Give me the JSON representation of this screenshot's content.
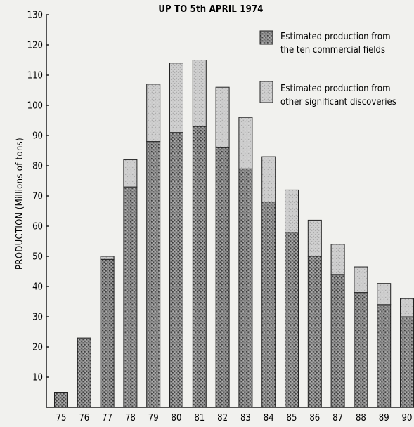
{
  "chart_data": {
    "type": "bar",
    "stacked": true,
    "title": "UP TO 5th APRIL 1974",
    "xlabel": "",
    "ylabel": "PRODUCTION   (Millions of tons)",
    "categories": [
      "75",
      "76",
      "77",
      "78",
      "79",
      "80",
      "81",
      "82",
      "83",
      "84",
      "85",
      "86",
      "87",
      "88",
      "89",
      "90"
    ],
    "yticks": [
      10,
      20,
      30,
      40,
      50,
      60,
      70,
      80,
      90,
      100,
      110,
      120,
      130
    ],
    "ylim": [
      0,
      130
    ],
    "grid": false,
    "legend_position": "top-right",
    "series": [
      {
        "name": "Estimated production from the ten commercial fields",
        "legend_lines": [
          "Estimated production from",
          "the ten commercial fields"
        ],
        "values": [
          5,
          23,
          49,
          73,
          88,
          91,
          93,
          86,
          79,
          68,
          58,
          50,
          44,
          38,
          34,
          30
        ],
        "color": "#6e6e6e",
        "pattern": "dense-stipple"
      },
      {
        "name": "Estimated production from other significant discoveries",
        "legend_lines": [
          "Estimated production from",
          "other significant discoveries"
        ],
        "values": [
          0,
          0,
          1,
          9,
          19,
          23,
          22,
          20,
          17,
          15,
          14,
          12,
          10,
          8.5,
          7,
          6
        ],
        "color": "#bdbdbd",
        "pattern": "light-stipple"
      }
    ]
  }
}
